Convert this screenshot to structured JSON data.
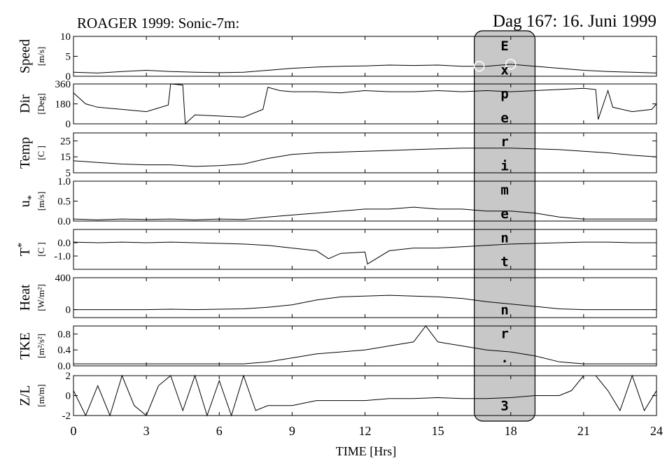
{
  "header": {
    "title_left": "ROAGER 1999: Sonic-7m:",
    "title_right": "Dag 167: 16. Juni 1999"
  },
  "chart_data": {
    "type": "line",
    "title": "ROAGER 1999: Sonic-7m:",
    "subtitle": "Dag 167: 16. Juni 1999",
    "xlabel": "TIME [Hrs]",
    "xlim": [
      0,
      24
    ],
    "x_ticks": [
      0,
      3,
      6,
      9,
      12,
      15,
      18,
      21,
      24
    ],
    "x_tick_labels": [
      "0",
      "3",
      "6",
      "9",
      "12",
      "15",
      "18",
      "21",
      "24"
    ],
    "grid": false,
    "highlight": {
      "x_from": 16.5,
      "x_to": 19.0,
      "label": "Experiment nr. 3",
      "letters": [
        "E",
        "x",
        "p",
        "e",
        "r",
        "i",
        "m",
        "e",
        "n",
        "t",
        "",
        "n",
        "r",
        ".",
        "",
        "3"
      ],
      "color": "#c8c8c8"
    },
    "panels": [
      {
        "id": "speed",
        "label": "Speed",
        "unit": "[m/s]",
        "ylim": [
          0,
          10
        ],
        "ticks": [
          0,
          5,
          10
        ],
        "tick_labels": [
          "0",
          "5",
          "10"
        ],
        "markers_x": [
          16.7,
          18.0
        ],
        "x": [
          0,
          1,
          2,
          3,
          4,
          5,
          6,
          7,
          8,
          9,
          10,
          11,
          12,
          13,
          14,
          15,
          16,
          17,
          18,
          19,
          20,
          21,
          22,
          23,
          24
        ],
        "y": [
          1.0,
          0.8,
          1.2,
          1.5,
          1.2,
          1.0,
          0.9,
          1.0,
          1.5,
          2.0,
          2.3,
          2.5,
          2.6,
          2.8,
          2.7,
          2.8,
          2.5,
          2.5,
          3.0,
          2.5,
          2.0,
          1.5,
          1.2,
          1.0,
          0.8
        ]
      },
      {
        "id": "dir",
        "label": "Dir",
        "unit": "[Deg]",
        "ylim": [
          0,
          360
        ],
        "ticks": [
          0,
          180,
          360
        ],
        "tick_labels": [
          "0",
          "180",
          "360"
        ],
        "x": [
          0,
          0.5,
          1,
          2,
          3,
          3.9,
          4.0,
          4.5,
          4.6,
          5,
          6,
          7,
          7.8,
          8,
          8.5,
          9,
          10,
          11,
          12,
          13,
          14,
          15,
          16,
          17,
          18,
          19,
          20,
          21,
          21.5,
          21.6,
          22,
          22.2,
          23,
          23.8,
          24
        ],
        "y": [
          280,
          180,
          150,
          130,
          110,
          170,
          360,
          350,
          0,
          80,
          70,
          60,
          130,
          330,
          300,
          290,
          290,
          280,
          300,
          290,
          290,
          300,
          290,
          300,
          290,
          300,
          310,
          320,
          310,
          40,
          300,
          150,
          110,
          130,
          180
        ]
      },
      {
        "id": "temp",
        "label": "Temp",
        "unit": "[C ]",
        "ylim": [
          5,
          30
        ],
        "ticks": [
          5,
          15,
          25
        ],
        "tick_labels": [
          "5",
          "15",
          "25"
        ],
        "x": [
          0,
          1,
          2,
          3,
          4,
          5,
          6,
          7,
          8,
          9,
          10,
          11,
          12,
          13,
          14,
          15,
          16,
          17,
          18,
          19,
          20,
          21,
          22,
          23,
          24
        ],
        "y": [
          12.5,
          11.5,
          10.5,
          10.0,
          10.0,
          9.0,
          9.5,
          10.5,
          14.0,
          16.5,
          17.5,
          18.0,
          18.5,
          19.0,
          19.5,
          20.0,
          20.5,
          20.5,
          20.5,
          20.0,
          19.5,
          18.5,
          17.5,
          16.0,
          15.0
        ]
      },
      {
        "id": "ustar",
        "label": "u",
        "label_sub": "*",
        "unit": "[m/s]",
        "ylim": [
          0,
          1.0
        ],
        "ticks": [
          0.0,
          0.5,
          1.0
        ],
        "tick_labels": [
          "0.0",
          "0.5",
          "1.0"
        ],
        "x": [
          0,
          1,
          2,
          3,
          4,
          5,
          6,
          7,
          8,
          9,
          10,
          11,
          12,
          13,
          14,
          15,
          16,
          17,
          18,
          19,
          20,
          21,
          22,
          23,
          24
        ],
        "y": [
          0.05,
          0.03,
          0.05,
          0.04,
          0.05,
          0.03,
          0.05,
          0.04,
          0.1,
          0.15,
          0.2,
          0.25,
          0.3,
          0.3,
          0.35,
          0.3,
          0.3,
          0.25,
          0.25,
          0.2,
          0.1,
          0.05,
          0.05,
          0.05,
          0.05
        ]
      },
      {
        "id": "tstar",
        "label": "T",
        "label_sup": "*",
        "unit": "[C ]",
        "ylim": [
          -2.0,
          1.0
        ],
        "ticks": [
          -1.0,
          0.0
        ],
        "tick_labels": [
          "-1.0",
          "0.0"
        ],
        "x": [
          0,
          1,
          2,
          3,
          4,
          5,
          6,
          7,
          8,
          9,
          10,
          10.5,
          11,
          12,
          12.1,
          13,
          14,
          15,
          16,
          17,
          18,
          19,
          20,
          21,
          22,
          23,
          24
        ],
        "y": [
          0.05,
          0.0,
          0.05,
          0.0,
          0.05,
          0.0,
          -0.05,
          -0.1,
          -0.2,
          -0.4,
          -0.6,
          -1.2,
          -0.8,
          -0.7,
          -1.6,
          -0.6,
          -0.4,
          -0.4,
          -0.3,
          -0.2,
          -0.1,
          -0.05,
          0.0,
          0.05,
          0.05,
          0.0,
          0.0
        ]
      },
      {
        "id": "heat",
        "label": "Heat",
        "unit": "[W/m²]",
        "ylim": [
          -100,
          400
        ],
        "ticks": [
          0,
          400
        ],
        "tick_labels": [
          "0",
          "400"
        ],
        "x": [
          0,
          1,
          2,
          3,
          4,
          5,
          6,
          7,
          8,
          9,
          10,
          11,
          12,
          13,
          14,
          15,
          16,
          17,
          18,
          19,
          20,
          21,
          22,
          23,
          24
        ],
        "y": [
          0,
          0,
          0,
          0,
          5,
          0,
          5,
          10,
          30,
          60,
          120,
          160,
          170,
          180,
          170,
          160,
          140,
          100,
          70,
          40,
          10,
          0,
          0,
          0,
          0
        ]
      },
      {
        "id": "tke",
        "label": "TKE",
        "unit": "[m²/s²]",
        "ylim": [
          0,
          1.0
        ],
        "ticks": [
          0.0,
          0.4,
          0.8
        ],
        "tick_labels": [
          "0.0",
          "0.4",
          "0.8"
        ],
        "x": [
          0,
          1,
          2,
          3,
          4,
          5,
          6,
          7,
          8,
          9,
          10,
          11,
          12,
          13,
          14,
          14.5,
          15,
          16,
          17,
          18,
          19,
          20,
          21,
          22,
          23,
          24
        ],
        "y": [
          0.05,
          0.05,
          0.05,
          0.05,
          0.05,
          0.05,
          0.05,
          0.05,
          0.1,
          0.2,
          0.3,
          0.35,
          0.4,
          0.5,
          0.6,
          1.05,
          0.6,
          0.5,
          0.4,
          0.35,
          0.25,
          0.1,
          0.05,
          0.05,
          0.05,
          0.05
        ]
      },
      {
        "id": "zl",
        "label": "Z/L",
        "unit": "[m/m]",
        "ylim": [
          -2,
          2
        ],
        "ticks": [
          -2,
          0,
          2
        ],
        "tick_labels": [
          "-2",
          "0",
          "2"
        ],
        "x": [
          0,
          0.5,
          1,
          1.5,
          2,
          2.5,
          3,
          3.5,
          4,
          4.5,
          5,
          5.5,
          6,
          6.5,
          7,
          7.5,
          8,
          9,
          10,
          11,
          12,
          13,
          14,
          15,
          16,
          17,
          18,
          19,
          20,
          20.5,
          21,
          21.5,
          22,
          22.5,
          23,
          23.5,
          24
        ],
        "y": [
          0.5,
          -2,
          1,
          -2,
          2,
          -1,
          -2,
          1,
          2,
          -1.5,
          2,
          -2,
          1.5,
          -2,
          2,
          -1.5,
          -1,
          -1,
          -0.5,
          -0.5,
          -0.5,
          -0.3,
          -0.3,
          -0.2,
          -0.3,
          -0.3,
          -0.2,
          0,
          0,
          0.5,
          2,
          2,
          0.5,
          -1.5,
          2,
          -1.5,
          0.5
        ]
      }
    ]
  }
}
